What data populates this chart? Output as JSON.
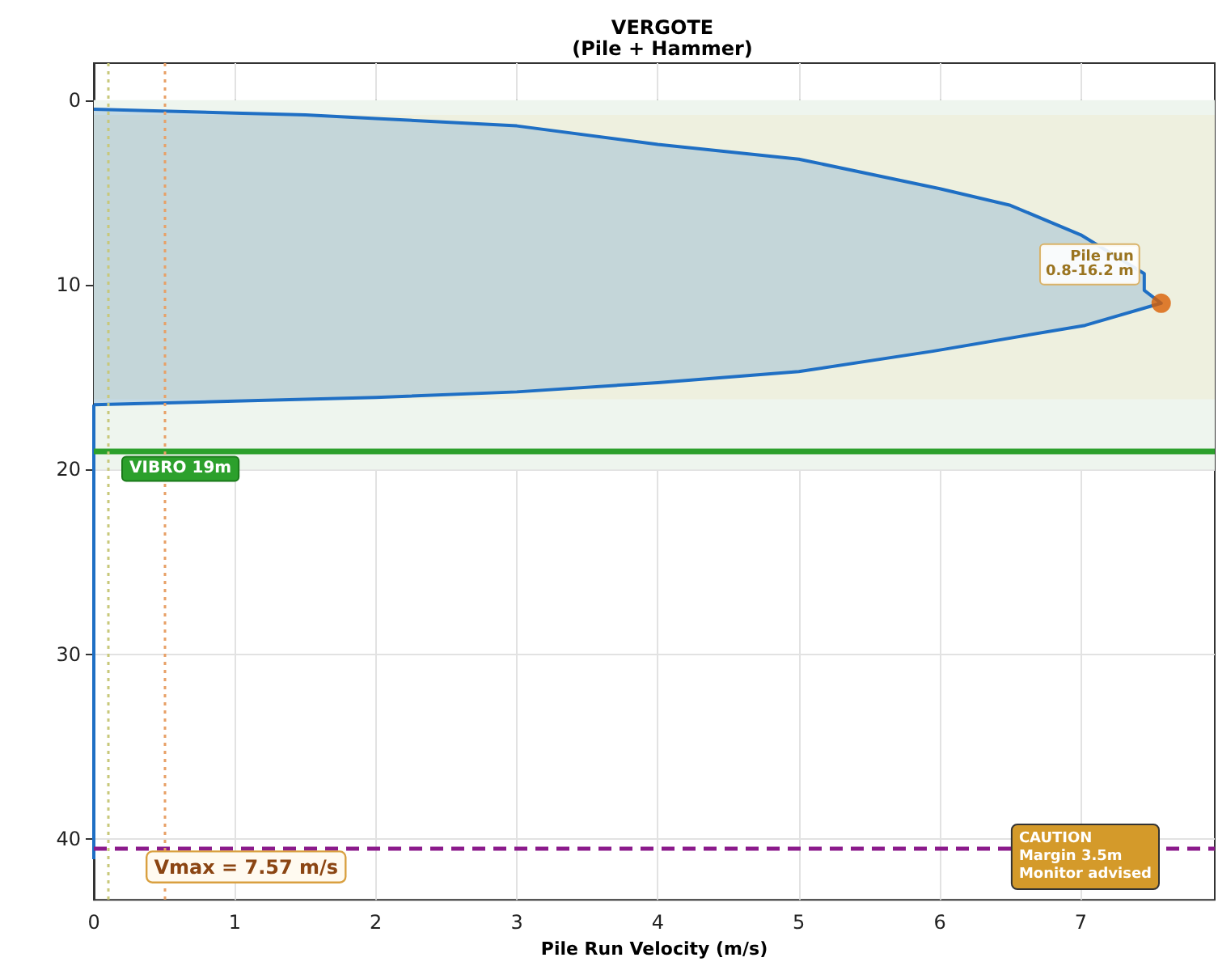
{
  "chart_data": {
    "type": "area",
    "title": "VERGOTE",
    "subtitle": "(Pile + Hammer)",
    "xlabel": "Pile Run Velocity (m/s)",
    "series": [
      {
        "color": "#1f6fc4",
        "x": [
          0,
          1,
          1.5,
          2,
          3,
          4,
          5,
          6,
          6.5,
          7,
          7.45,
          7.45,
          7.57,
          7.03,
          5.95,
          5.0,
          4.0,
          3.0,
          2.0,
          1.0,
          0
        ],
        "values": [
          0.5,
          0.7,
          0.8,
          1.0,
          1.4,
          2.4,
          3.2,
          4.8,
          5.7,
          7.3,
          9.4,
          10.3,
          11.0,
          12.2,
          13.6,
          14.7,
          15.3,
          15.8,
          16.1,
          16.3,
          16.5
        ]
      },
      {
        "type": "line",
        "color": "#1f6fc4",
        "x": [
          0,
          0
        ],
        "values": [
          16.5,
          41.1
        ]
      },
      {
        "type": "scatter",
        "color": "#d95f02",
        "x": [
          7.57
        ],
        "values": [
          11
        ]
      }
    ],
    "xlim": [
      0,
      7.95
    ],
    "xticks": [
      0,
      1,
      2,
      3,
      4,
      5,
      6,
      7
    ],
    "ylim": [
      43.3,
      -2
    ],
    "yticks": [
      0,
      10,
      20,
      30,
      40
    ],
    "grid": true,
    "bands": [
      {
        "axis": "y",
        "from": 0,
        "to": 20,
        "color": "#eef5ee"
      },
      {
        "axis": "y",
        "from": 0.8,
        "to": 16.2,
        "color": "#eef0df"
      }
    ],
    "ref_lines": [
      {
        "axis": "y",
        "value": 19,
        "label": "VIBRO 19m",
        "color": "#2ca02c",
        "line_style": "solid"
      },
      {
        "axis": "y",
        "value": 40.5,
        "color": "#8b1a8b",
        "line_style": "dashed"
      },
      {
        "axis": "x",
        "value": 0.1,
        "color": "#c8c87a",
        "line_style": "dotted"
      },
      {
        "axis": "x",
        "value": 0.5,
        "color": "#e8a066",
        "line_style": "dotted"
      }
    ],
    "annotations": [
      {
        "text": "Pile run\n0.8-16.2 m",
        "x": 7.57,
        "y": 11
      },
      "Vmax = 7.57 m/s",
      "CAUTION\nMargin 3.5m\nMonitor advised"
    ]
  }
}
